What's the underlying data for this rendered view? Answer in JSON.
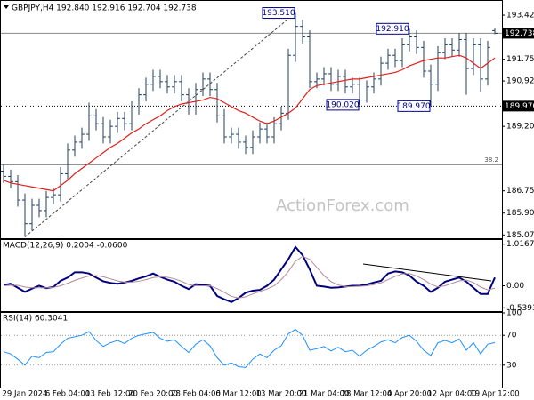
{
  "chart_data": [
    {
      "type": "ohlc",
      "title": "GBPJPY,H4  192.840 192.916 192.704 192.738",
      "watermark": "ActionForex.com",
      "color": "#23405e",
      "categories": [
        null,
        null,
        null,
        "29 Jan 2024",
        null,
        null,
        null,
        null,
        null,
        "6 Feb 04:00",
        null,
        null,
        null,
        null,
        null,
        "13 Feb 12:00",
        null,
        null,
        null,
        null,
        null,
        "20 Feb 20:00",
        null,
        null,
        null,
        null,
        null,
        "28 Feb 04:00",
        null,
        null,
        null,
        null,
        null,
        "6 Mar 12:00",
        null,
        null,
        null,
        null,
        null,
        "13 Mar 20:00",
        null,
        null,
        null,
        null,
        null,
        "21 Mar 04:00",
        null,
        null,
        null,
        null,
        null,
        "28 Mar 12:00",
        null,
        null,
        null,
        null,
        null,
        "4 Apr 20:00",
        null,
        null,
        null,
        null,
        null,
        "12 Apr 04:00",
        null,
        null,
        null,
        null,
        null,
        "19 Apr 12:00"
      ],
      "open": [
        187.5,
        187.3,
        187.1,
        186.4,
        185.5,
        186.2,
        186.0,
        186.5,
        186.6,
        187.4,
        188.3,
        188.6,
        188.9,
        189.6,
        189.3,
        188.8,
        189.2,
        189.5,
        189.3,
        189.9,
        190.4,
        190.8,
        191.1,
        190.9,
        190.7,
        190.9,
        190.4,
        189.9,
        190.6,
        191.0,
        190.6,
        189.6,
        188.8,
        188.9,
        188.6,
        188.4,
        188.8,
        189.1,
        188.8,
        189.3,
        189.7,
        191.9,
        193.0,
        192.6,
        190.9,
        191.0,
        191.2,
        190.8,
        191.1,
        190.7,
        190.8,
        190.2,
        190.7,
        191.0,
        191.6,
        191.9,
        191.7,
        192.3,
        192.6,
        192.2,
        191.3,
        190.8,
        192.0,
        192.3,
        192.1,
        192.5,
        191.4,
        192.3,
        191.0,
        192.84
      ],
      "high": [
        187.75,
        187.55,
        187.35,
        186.65,
        186.45,
        186.45,
        186.75,
        186.85,
        187.65,
        188.55,
        188.85,
        189.15,
        190.1,
        189.85,
        189.55,
        189.45,
        189.75,
        189.75,
        190.15,
        190.65,
        191.05,
        191.35,
        191.35,
        191.15,
        191.15,
        191.15,
        190.65,
        190.85,
        191.25,
        191.25,
        190.85,
        189.85,
        189.15,
        189.15,
        188.85,
        189.05,
        189.35,
        189.35,
        189.55,
        189.95,
        192.15,
        193.51,
        193.25,
        192.85,
        191.25,
        191.45,
        191.45,
        191.35,
        191.35,
        191.05,
        191.05,
        190.95,
        191.25,
        191.85,
        192.15,
        192.15,
        192.55,
        192.91,
        192.85,
        192.45,
        191.55,
        192.25,
        192.55,
        192.55,
        192.75,
        192.75,
        192.55,
        192.55,
        192.45,
        192.916
      ],
      "low": [
        187.05,
        186.85,
        186.15,
        185.0,
        185.25,
        185.75,
        185.75,
        186.25,
        186.35,
        187.15,
        188.05,
        188.35,
        188.65,
        189.05,
        188.55,
        188.55,
        188.95,
        189.05,
        189.05,
        189.65,
        190.15,
        190.55,
        190.65,
        190.45,
        190.45,
        190.15,
        189.65,
        189.65,
        190.35,
        190.35,
        189.35,
        188.55,
        188.55,
        188.35,
        188.15,
        188.15,
        188.55,
        188.55,
        188.55,
        189.05,
        189.45,
        191.65,
        192.35,
        190.65,
        190.65,
        190.75,
        190.55,
        190.55,
        190.45,
        190.45,
        190.02,
        190.1,
        190.45,
        190.75,
        191.35,
        191.45,
        191.45,
        192.05,
        191.95,
        191.05,
        189.97,
        190.55,
        191.75,
        191.85,
        191.85,
        190.4,
        191.15,
        190.5,
        190.75,
        192.704
      ],
      "close": [
        187.3,
        187.1,
        186.4,
        185.5,
        186.2,
        186.0,
        186.5,
        186.6,
        187.4,
        188.3,
        188.6,
        188.9,
        189.6,
        189.3,
        188.8,
        189.2,
        189.5,
        189.3,
        189.9,
        190.4,
        190.8,
        191.1,
        190.9,
        190.7,
        190.9,
        190.4,
        189.9,
        190.6,
        191.0,
        190.6,
        189.6,
        188.8,
        188.9,
        188.6,
        188.4,
        188.8,
        189.1,
        188.8,
        189.3,
        189.7,
        191.9,
        193.0,
        192.6,
        190.9,
        191.0,
        191.2,
        190.8,
        191.1,
        190.7,
        190.8,
        190.2,
        190.7,
        191.0,
        191.6,
        191.9,
        191.7,
        192.3,
        192.6,
        192.2,
        191.3,
        190.8,
        192.0,
        192.3,
        192.1,
        192.5,
        191.4,
        192.3,
        191.0,
        192.2,
        192.738
      ],
      "ma": {
        "color": "#e0201b",
        "values": [
          187.15,
          187.05,
          187.0,
          186.95,
          186.9,
          186.85,
          186.8,
          186.75,
          186.95,
          187.15,
          187.4,
          187.6,
          187.8,
          188.0,
          188.2,
          188.4,
          188.55,
          188.75,
          188.95,
          189.1,
          189.3,
          189.45,
          189.6,
          189.8,
          189.95,
          190.05,
          190.1,
          190.15,
          190.2,
          190.3,
          190.25,
          190.1,
          189.95,
          189.8,
          189.7,
          189.55,
          189.4,
          189.3,
          189.4,
          189.55,
          189.7,
          189.9,
          190.25,
          190.6,
          190.75,
          190.8,
          190.85,
          190.9,
          190.95,
          191.0,
          191.0,
          191.05,
          191.1,
          191.15,
          191.2,
          191.25,
          191.35,
          191.5,
          191.6,
          191.7,
          191.75,
          191.8,
          191.8,
          191.85,
          191.9,
          191.8,
          191.6,
          191.4,
          191.6,
          191.8
        ]
      },
      "annotations": [
        {
          "value": 193.51,
          "label": "193.510"
        },
        {
          "value": 192.91,
          "label": "192.910"
        },
        {
          "value": 190.02,
          "label": "190.020"
        },
        {
          "value": 189.97,
          "label": "189.970"
        }
      ],
      "hlines": [
        {
          "value": 192.738,
          "label": "192.738",
          "style": "solid"
        },
        {
          "value": 189.97,
          "label": "189.970",
          "style": "dotted"
        },
        {
          "value": 187.75,
          "label": "38.2",
          "style": "fib"
        }
      ],
      "trendline": true,
      "ylim": [
        184.95,
        193.9
      ],
      "yticks": [
        193.425,
        {
          "value": 191.75,
          "label": "191.750"
        },
        190.925,
        {
          "value": 189.2,
          "label": "189.200"
        },
        {
          "value": 186.75,
          "label": "186.750"
        },
        185.905,
        185.075
      ]
    },
    {
      "type": "line",
      "title": "MACD(12,26,9) 0.2004 -0.0600",
      "series": [
        {
          "color": "#00007f",
          "width": 2,
          "values": [
            0.02,
            0.05,
            -0.05,
            -0.15,
            -0.07,
            0.0,
            -0.06,
            -0.03,
            0.12,
            0.2,
            0.33,
            0.33,
            0.3,
            0.2,
            0.11,
            0.07,
            0.05,
            0.08,
            0.12,
            0.18,
            0.23,
            0.3,
            0.22,
            0.15,
            0.1,
            0.0,
            -0.08,
            0.04,
            0.02,
            0.0,
            -0.25,
            -0.33,
            -0.4,
            -0.3,
            -0.17,
            -0.12,
            -0.1,
            0.0,
            0.15,
            0.4,
            0.65,
            0.95,
            0.75,
            0.4,
            0.0,
            -0.02,
            -0.05,
            -0.04,
            -0.02,
            0.0,
            0.0,
            0.03,
            0.08,
            0.12,
            0.3,
            0.35,
            0.33,
            0.25,
            0.1,
            0.0,
            -0.15,
            -0.05,
            0.1,
            0.15,
            0.2,
            0.1,
            -0.05,
            -0.2,
            -0.2,
            0.2004
          ]
        },
        {
          "color": "#b48a98",
          "width": 1,
          "values": [
            0.0,
            0.01,
            0.01,
            -0.03,
            -0.05,
            -0.05,
            -0.05,
            -0.04,
            0.0,
            0.06,
            0.13,
            0.19,
            0.24,
            0.25,
            0.22,
            0.17,
            0.12,
            0.09,
            0.09,
            0.11,
            0.15,
            0.2,
            0.22,
            0.21,
            0.17,
            0.11,
            0.03,
            0.0,
            0.0,
            0.0,
            -0.07,
            -0.16,
            -0.26,
            -0.3,
            -0.27,
            -0.2,
            -0.14,
            -0.08,
            0.0,
            0.15,
            0.35,
            0.6,
            0.72,
            0.65,
            0.45,
            0.25,
            0.1,
            0.02,
            -0.02,
            -0.02,
            -0.01,
            0.0,
            0.03,
            0.07,
            0.15,
            0.23,
            0.29,
            0.3,
            0.24,
            0.15,
            0.04,
            -0.03,
            0.0,
            0.06,
            0.12,
            0.14,
            0.08,
            -0.03,
            -0.1,
            -0.06
          ]
        }
      ],
      "ylim": [
        -0.62,
        1.12
      ],
      "yticks": [
        1.0167,
        {
          "value": 0,
          "label": "0.00"
        },
        -0.5393
      ]
    },
    {
      "type": "line",
      "title": "RSI(14) 60.3041",
      "grid": "dotted",
      "series": [
        {
          "color": "#1e90ff",
          "width": 1,
          "values": [
            48,
            45,
            38,
            30,
            42,
            40,
            47,
            48,
            58,
            66,
            68,
            70,
            75,
            63,
            55,
            60,
            63,
            59,
            66,
            70,
            72,
            74,
            66,
            62,
            64,
            55,
            47,
            58,
            64,
            56,
            40,
            30,
            33,
            28,
            27,
            38,
            45,
            40,
            50,
            56,
            72,
            78,
            70,
            50,
            52,
            55,
            49,
            54,
            48,
            50,
            42,
            50,
            55,
            61,
            64,
            60,
            67,
            70,
            62,
            50,
            43,
            60,
            63,
            60,
            65,
            50,
            60,
            45,
            58,
            60.3041
          ]
        }
      ],
      "ylim": [
        0,
        100
      ],
      "yticks": [
        100,
        70,
        30
      ]
    }
  ]
}
